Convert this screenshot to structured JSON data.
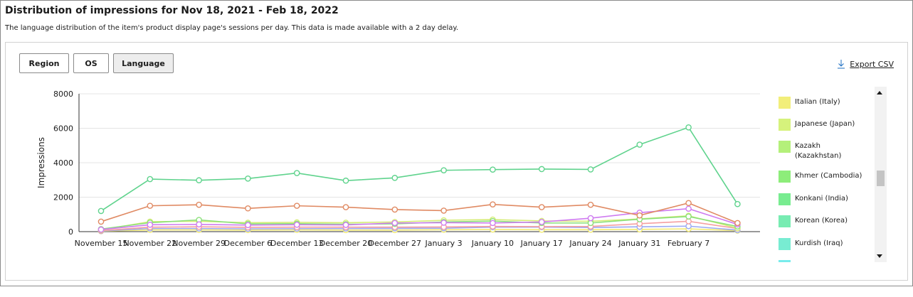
{
  "header": {
    "title": "Distribution of impressions for Nov 18, 2021 - Feb 18, 2022",
    "subtitle": "The language distribution of the item's product display page's sessions per day. This data is made available with a 2 day delay."
  },
  "toolbar": {
    "region_label": "Region",
    "os_label": "OS",
    "language_label": "Language",
    "active_tab": "Language",
    "export_label": "Export CSV"
  },
  "chart_data": {
    "type": "line",
    "ylabel": "Impressions",
    "xlabel": "",
    "ylim": [
      0,
      8000
    ],
    "yticks": [
      0,
      2000,
      4000,
      6000,
      8000
    ],
    "grid": true,
    "legend_position": "right",
    "x": [
      "November 15",
      "November 22",
      "November 29",
      "December 6",
      "December 13",
      "December 20",
      "December 27",
      "January 3",
      "January 10",
      "January 17",
      "January 24",
      "January 31",
      "February 7",
      ""
    ],
    "series": [
      {
        "color": "#5fd38d",
        "values": [
          1200,
          3050,
          2980,
          3080,
          3400,
          2960,
          3120,
          3560,
          3600,
          3630,
          3610,
          5050,
          6050,
          1600
        ]
      },
      {
        "color": "#e08a63",
        "values": [
          580,
          1500,
          1560,
          1350,
          1500,
          1420,
          1280,
          1220,
          1580,
          1420,
          1560,
          940,
          1660,
          500
        ]
      },
      {
        "color": "#cf7bf0",
        "values": [
          120,
          400,
          420,
          380,
          400,
          390,
          500,
          520,
          500,
          560,
          780,
          1100,
          1330,
          420
        ]
      },
      {
        "color": "#8be07a",
        "values": [
          150,
          520,
          680,
          450,
          460,
          430,
          450,
          560,
          610,
          500,
          500,
          720,
          880,
          300
        ]
      },
      {
        "color": "#d6ec78",
        "values": [
          100,
          580,
          600,
          520,
          540,
          520,
          560,
          660,
          700,
          620,
          600,
          740,
          920,
          200
        ]
      },
      {
        "color": "#f59fa0",
        "values": [
          60,
          260,
          280,
          250,
          260,
          260,
          260,
          270,
          300,
          290,
          300,
          460,
          600,
          180
        ]
      },
      {
        "color": "#9aa9f2",
        "values": [
          40,
          180,
          180,
          160,
          170,
          180,
          190,
          200,
          260,
          260,
          240,
          280,
          320,
          90
        ]
      },
      {
        "color": "#f2ea70",
        "values": [
          30,
          100,
          100,
          90,
          100,
          90,
          90,
          110,
          120,
          110,
          110,
          130,
          160,
          60
        ]
      }
    ],
    "legend": [
      {
        "label": "Italian (Italy)",
        "color": "#f2ee7a"
      },
      {
        "label": "Japanese (Japan)",
        "color": "#d6f27c"
      },
      {
        "label": "Kazakh (Kazakhstan)",
        "color": "#b4f07a"
      },
      {
        "label": "Khmer (Cambodia)",
        "color": "#8ded7a"
      },
      {
        "label": "Konkani (India)",
        "color": "#78ec90"
      },
      {
        "label": "Korean (Korea)",
        "color": "#78ecb2"
      },
      {
        "label": "Kurdish (Iraq)",
        "color": "#78ecd2"
      },
      {
        "label": "",
        "color": "#78ecec"
      }
    ]
  }
}
